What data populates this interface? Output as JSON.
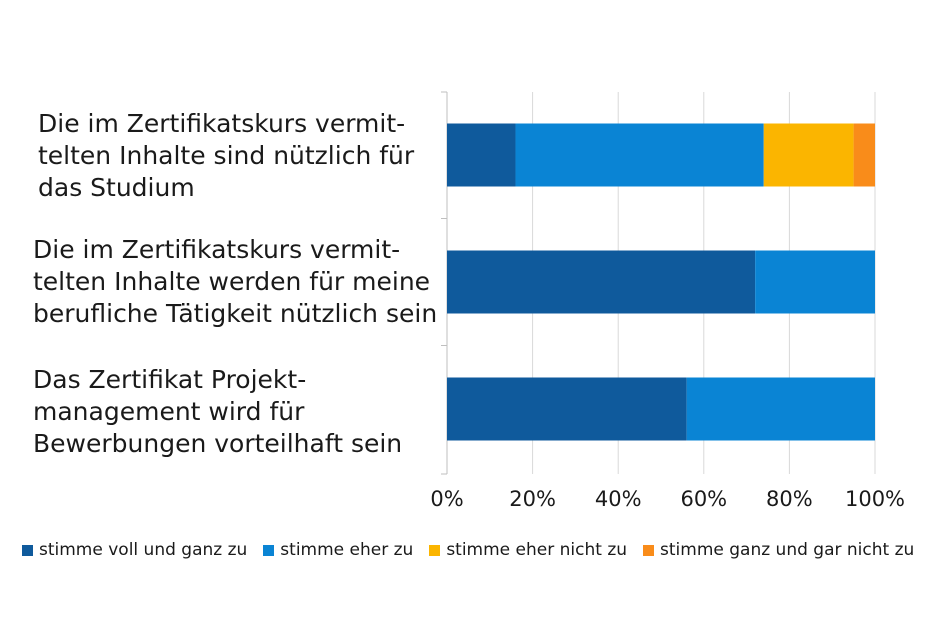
{
  "chart_data": {
    "type": "bar",
    "orientation": "horizontal",
    "stacked": true,
    "categories": [
      "Die im Zertifikatskurs vermit-\ntelten Inhalte sind nützlich für\ndas Studium",
      "Die im Zertifikatskurs vermit-\ntelten Inhalte werden für meine\nberufliche Tätigkeit nützlich sein",
      "Das Zertifikat Projekt-\nmanagement wird für\nBewerbungen vorteilhaft sein"
    ],
    "series": [
      {
        "name": "stimme voll und ganz zu",
        "color": "#0f5a9c",
        "values": [
          0.16,
          0.72,
          0.56
        ]
      },
      {
        "name": "stimme eher zu",
        "color": "#0a84d4",
        "values": [
          0.58,
          0.28,
          0.44
        ]
      },
      {
        "name": "stimme eher nicht zu",
        "color": "#fbb500",
        "values": [
          0.21,
          0,
          0
        ]
      },
      {
        "name": "stimme ganz und gar nicht zu",
        "color": "#f98c1a",
        "values": [
          0.05,
          0,
          0
        ]
      }
    ],
    "xlim": [
      0,
      1
    ],
    "x_ticks": [
      "0%",
      "20%",
      "40%",
      "60%",
      "80%",
      "100%"
    ],
    "grid": true,
    "legend_position": "bottom"
  }
}
